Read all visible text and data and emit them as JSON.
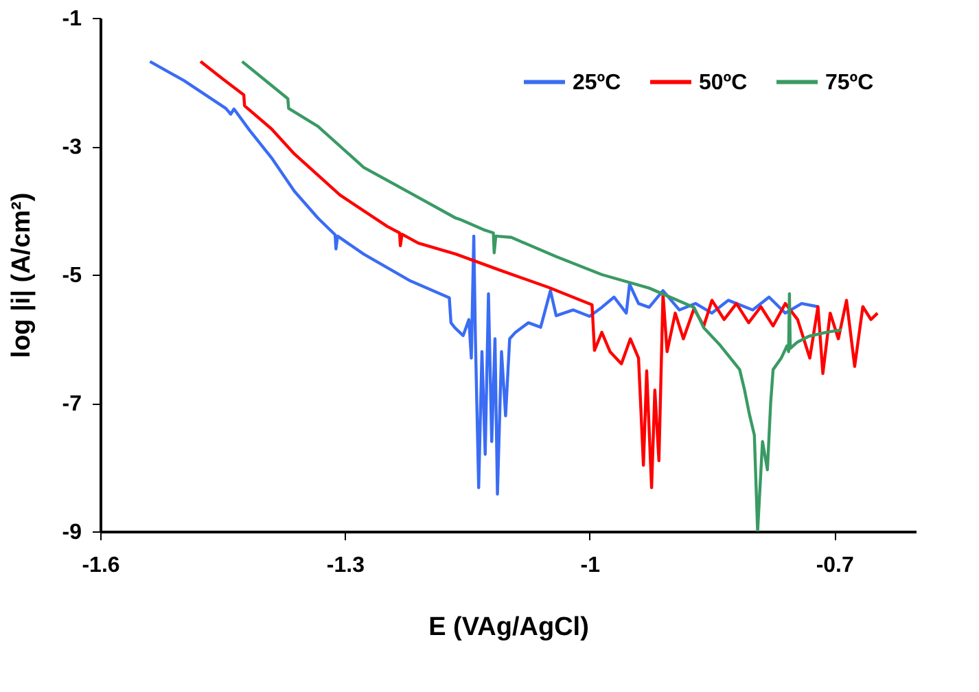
{
  "chart_data": {
    "type": "line",
    "xlabel": "E (VAg/AgCl)",
    "ylabel": "log |i| (A/cm²)",
    "xlim": [
      -1.6,
      -0.6
    ],
    "xticks": [
      -1.6,
      -1.3,
      -1,
      -0.7
    ],
    "ylim": [
      -9,
      -1
    ],
    "yticks": [
      -9,
      -7,
      -5,
      -3,
      -1
    ],
    "grid": false,
    "legend": "top right",
    "marker": "none",
    "line_style": "solid",
    "series": [
      {
        "name": "25ºC",
        "color": "#3a6cf4",
        "x": [
          -1.539,
          -1.497,
          -1.446,
          -1.44,
          -1.436,
          -1.417,
          -1.39,
          -1.362,
          -1.333,
          -1.312,
          -1.311,
          -1.309,
          -1.277,
          -1.221,
          -1.172,
          -1.17,
          -1.165,
          -1.155,
          -1.148,
          -1.145,
          -1.142,
          -1.14,
          -1.136,
          -1.132,
          -1.128,
          -1.124,
          -1.12,
          -1.116,
          -1.113,
          -1.108,
          -1.103,
          -1.098,
          -1.091,
          -1.075,
          -1.06,
          -1.048,
          -1.041,
          -1.02,
          -1.0,
          -0.985,
          -0.97,
          -0.955,
          -0.951,
          -0.94,
          -0.927,
          -0.91,
          -0.89,
          -0.87,
          -0.85,
          -0.83,
          -0.8,
          -0.78,
          -0.76,
          -0.74,
          -0.72
        ],
        "values": [
          -1.68,
          -1.98,
          -2.41,
          -2.5,
          -2.42,
          -2.75,
          -3.18,
          -3.7,
          -4.12,
          -4.38,
          -4.6,
          -4.4,
          -4.68,
          -5.09,
          -5.36,
          -5.75,
          -5.83,
          -5.95,
          -5.7,
          -6.3,
          -4.4,
          -6.0,
          -8.32,
          -6.2,
          -7.8,
          -5.3,
          -7.6,
          -6.0,
          -8.42,
          -6.2,
          -7.2,
          -6.0,
          -5.9,
          -5.75,
          -5.82,
          -5.25,
          -5.64,
          -5.55,
          -5.65,
          -5.51,
          -5.35,
          -5.6,
          -5.15,
          -5.45,
          -5.51,
          -5.25,
          -5.55,
          -5.45,
          -5.6,
          -5.4,
          -5.55,
          -5.35,
          -5.6,
          -5.45,
          -5.5
        ]
      },
      {
        "name": "50ºC",
        "color": "#ff0000",
        "x": [
          -1.477,
          -1.45,
          -1.424,
          -1.423,
          -1.39,
          -1.362,
          -1.306,
          -1.248,
          -1.233,
          -1.232,
          -1.23,
          -1.21,
          -1.164,
          -1.108,
          -1.05,
          -0.997,
          -0.994,
          -0.985,
          -0.975,
          -0.961,
          -0.95,
          -0.94,
          -0.934,
          -0.93,
          -0.924,
          -0.92,
          -0.915,
          -0.91,
          -0.905,
          -0.895,
          -0.885,
          -0.872,
          -0.86,
          -0.85,
          -0.835,
          -0.82,
          -0.805,
          -0.79,
          -0.775,
          -0.76,
          -0.745,
          -0.73,
          -0.72,
          -0.714,
          -0.705,
          -0.695,
          -0.685,
          -0.675,
          -0.665,
          -0.655,
          -0.647
        ],
        "values": [
          -1.68,
          -1.95,
          -2.2,
          -2.37,
          -2.73,
          -3.12,
          -3.76,
          -4.25,
          -4.35,
          -4.55,
          -4.37,
          -4.51,
          -4.68,
          -4.94,
          -5.2,
          -5.47,
          -6.18,
          -5.9,
          -6.2,
          -6.39,
          -6.0,
          -6.3,
          -7.97,
          -6.5,
          -8.32,
          -6.8,
          -7.9,
          -5.3,
          -6.2,
          -5.6,
          -6.0,
          -5.53,
          -5.8,
          -5.4,
          -5.7,
          -5.45,
          -5.75,
          -5.5,
          -5.8,
          -5.45,
          -5.7,
          -6.3,
          -5.5,
          -6.54,
          -5.6,
          -6.0,
          -5.4,
          -6.43,
          -5.5,
          -5.7,
          -5.6
        ]
      },
      {
        "name": "75ºC",
        "color": "#3a9a64",
        "x": [
          -1.426,
          -1.4,
          -1.37,
          -1.369,
          -1.333,
          -1.277,
          -1.221,
          -1.164,
          -1.159,
          -1.13,
          -1.118,
          -1.117,
          -1.115,
          -1.096,
          -1.041,
          -0.985,
          -0.927,
          -0.872,
          -0.86,
          -0.84,
          -0.816,
          -0.81,
          -0.804,
          -0.798,
          -0.794,
          -0.788,
          -0.782,
          -0.778,
          -0.775,
          -0.765,
          -0.758,
          -0.756,
          -0.755,
          -0.754,
          -0.745,
          -0.731,
          -0.71,
          -0.691
        ],
        "values": [
          -1.68,
          -1.95,
          -2.26,
          -2.41,
          -2.69,
          -3.33,
          -3.72,
          -4.12,
          -4.14,
          -4.3,
          -4.35,
          -4.66,
          -4.4,
          -4.42,
          -4.72,
          -5.0,
          -5.21,
          -5.51,
          -5.83,
          -6.1,
          -6.48,
          -6.8,
          -7.18,
          -7.5,
          -9.0,
          -7.6,
          -8.04,
          -7.0,
          -6.48,
          -6.3,
          -6.11,
          -6.2,
          -5.3,
          -6.15,
          -6.05,
          -5.96,
          -5.9,
          -5.86
        ]
      }
    ]
  }
}
